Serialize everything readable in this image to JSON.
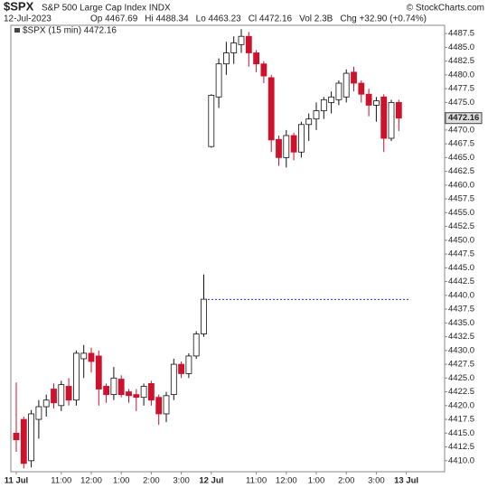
{
  "chart_data": {
    "type": "candlestick",
    "title": "$SPX",
    "subtitle": "S&P 500 Large Cap Index INDX",
    "source": "© StockCharts.com",
    "date": "12-Jul-2023",
    "quote": [
      "Op 4467.69",
      "Hi 4488.34",
      "Lo 4463.23",
      "Cl 4472.16",
      "Vol 2.3B",
      "Chg +32.90 (+0.74%)"
    ],
    "legend": "$SPX (15 min) 4472.16",
    "last_price": 4472.16,
    "previous_close": 4439.26,
    "up_color": "#ffffff",
    "down_color": "#d0112b",
    "categories": [
      "11 Jul",
      null,
      null,
      null,
      null,
      null,
      "11:00",
      null,
      null,
      null,
      "12:00",
      null,
      null,
      null,
      "1:00",
      null,
      null,
      null,
      "2:00",
      null,
      null,
      null,
      "3:00",
      null,
      null,
      null,
      "12 Jul",
      null,
      null,
      null,
      null,
      null,
      "11:00",
      null,
      null,
      null,
      "12:00",
      null,
      null,
      null,
      "1:00",
      null,
      null,
      null,
      "2:00",
      null,
      null,
      null,
      "3:00",
      null,
      null,
      null,
      "13 Jul"
    ],
    "open": [
      4415.0,
      4417.5,
      4410.0,
      4417.5,
      4419.8,
      4423.0,
      4420.0,
      4423.5,
      4421.0,
      4428.5,
      4429.5,
      4429.0,
      4423.5,
      4422.0,
      4424.8,
      4422.5,
      4422.0,
      4421.5,
      4424.0,
      4421.5,
      4418.5,
      4422.0,
      4427.5,
      4425.8,
      4429.0,
      4433.0,
      4467.0,
      4476.0,
      4482.0,
      4484.0,
      4485.5,
      4487.0,
      4484.0,
      4482.0,
      4479.5,
      4468.3,
      4465.0,
      4469.0,
      4466.0,
      4471.0,
      4472.0,
      4473.5,
      4475.0,
      4475.5,
      4476.0,
      4480.5,
      4478.5,
      4476.5,
      4474.5,
      4476.0,
      4468.5,
      4475.0,
      null
    ],
    "high": [
      4424.2,
      4418.0,
      4419.2,
      4421.0,
      4422.0,
      4424.0,
      4424.5,
      4425.0,
      4430.0,
      4431.0,
      4430.5,
      4430.0,
      4424.0,
      4427.0,
      4425.5,
      4423.0,
      4423.0,
      4424.0,
      4424.5,
      4422.0,
      4422.5,
      4428.5,
      4428.0,
      4429.5,
      4433.5,
      4443.8,
      4476.5,
      4483.0,
      4486.0,
      4487.0,
      4488.3,
      4487.8,
      4484.5,
      4482.5,
      4480.0,
      4469.0,
      4470.0,
      4469.5,
      4471.5,
      4473.0,
      4475.0,
      4476.0,
      4477.0,
      4479.0,
      4481.0,
      4481.5,
      4479.0,
      4477.5,
      4476.0,
      4476.5,
      4475.5,
      4475.5,
      null
    ],
    "low": [
      4411.6,
      4408.6,
      4408.8,
      4414.0,
      4418.0,
      4419.5,
      4419.0,
      4420.0,
      4420.0,
      4425.0,
      4426.0,
      4420.0,
      4420.5,
      4421.0,
      4421.5,
      4420.5,
      4419.0,
      4420.0,
      4420.0,
      4416.5,
      4417.0,
      4421.0,
      4425.0,
      4425.0,
      4428.5,
      4432.5,
      4466.8,
      4474.0,
      4480.0,
      4482.0,
      4484.0,
      4481.5,
      4480.5,
      4478.5,
      4466.0,
      4463.5,
      4463.2,
      4464.5,
      4465.0,
      4468.0,
      4470.0,
      4472.0,
      4473.0,
      4474.5,
      4475.0,
      4477.0,
      4475.0,
      4472.5,
      4471.5,
      4466.0,
      4468.0,
      4469.8,
      null
    ],
    "close": [
      4413.8,
      4409.5,
      4418.5,
      4419.8,
      4421.0,
      4420.5,
      4423.8,
      4421.0,
      4429.5,
      4429.5,
      4428.0,
      4423.0,
      4422.0,
      4425.0,
      4422.0,
      4421.8,
      4421.5,
      4423.5,
      4421.0,
      4418.5,
      4421.8,
      4427.5,
      4425.8,
      4429.0,
      4433.0,
      4439.3,
      4476.3,
      4482.0,
      4484.0,
      4485.8,
      4487.0,
      4484.0,
      4482.0,
      4479.8,
      4468.2,
      4465.0,
      4469.0,
      4466.0,
      4471.0,
      4472.0,
      4473.5,
      4475.5,
      4476.0,
      4478.5,
      4480.3,
      4478.5,
      4476.5,
      4474.5,
      4475.3,
      4468.5,
      4475.0,
      4472.16,
      null
    ],
    "ylim": [
      4408,
      4489
    ],
    "yticks": [
      {
        "value": 4410,
        "label": "4410.0"
      },
      4412.5,
      {
        "value": 4415,
        "label": "4415.0"
      },
      4417.5,
      {
        "value": 4420,
        "label": "4420.0"
      },
      4422.5,
      {
        "value": 4425,
        "label": "4425.0"
      },
      4427.5,
      {
        "value": 4430,
        "label": "4430.0"
      },
      4432.5,
      {
        "value": 4435,
        "label": "4435.0"
      },
      4437.5,
      {
        "value": 4440,
        "label": "4440.0"
      },
      4442.5,
      {
        "value": 4445,
        "label": "4445.0"
      },
      4447.5,
      {
        "value": 4450,
        "label": "4450.0"
      },
      4452.5,
      {
        "value": 4455,
        "label": "4455.0"
      },
      4457.5,
      {
        "value": 4460,
        "label": "4460.0"
      },
      4462.5,
      {
        "value": 4465,
        "label": "4465.0"
      },
      4467.5,
      {
        "value": 4470,
        "label": "4470.0"
      },
      4472.5,
      {
        "value": 4475,
        "label": "4475.0"
      },
      4477.5,
      {
        "value": 4480,
        "label": "4480.0"
      },
      4482.5,
      {
        "value": 4485,
        "label": "4485.0"
      },
      4487.5
    ]
  }
}
